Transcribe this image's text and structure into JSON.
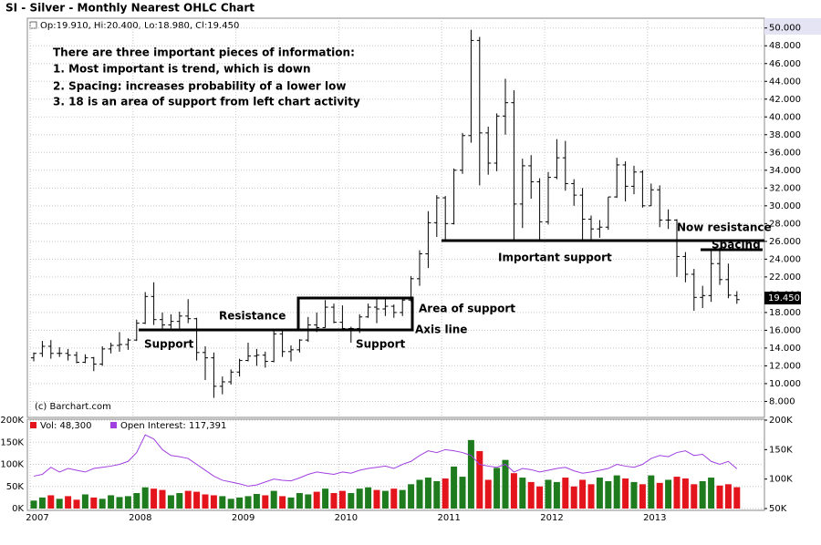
{
  "chart_data": [
    {
      "type": "ohlc",
      "title": "SI - Silver - Monthly Nearest OHLC Chart",
      "legend_label": "Op:19.910, Hi:20.400, Lo:18.980, Cl:19.450",
      "last_label": "19.450",
      "credit": "(c) Barchart.com",
      "color": "#000000",
      "grid": true,
      "ylim": [
        6.2,
        51.1
      ],
      "yticks": [
        {
          "value": 8,
          "label": "8.000"
        },
        {
          "value": 10,
          "label": "10.000"
        },
        {
          "value": 12,
          "label": "12.000"
        },
        {
          "value": 14,
          "label": "14.000"
        },
        {
          "value": 16,
          "label": "16.000"
        },
        {
          "value": 18,
          "label": "18.000"
        },
        {
          "value": 20,
          "label": "20.000"
        },
        {
          "value": 22,
          "label": "22.000"
        },
        {
          "value": 24,
          "label": "24.000"
        },
        {
          "value": 26,
          "label": "26.000"
        },
        {
          "value": 28,
          "label": "28.000"
        },
        {
          "value": 30,
          "label": "30.000"
        },
        {
          "value": 32,
          "label": "32.000"
        },
        {
          "value": 34,
          "label": "34.000"
        },
        {
          "value": 36,
          "label": "36.000"
        },
        {
          "value": 38,
          "label": "38.000"
        },
        {
          "value": 40,
          "label": "40.000"
        },
        {
          "value": 42,
          "label": "42.000"
        },
        {
          "value": 44,
          "label": "44.000"
        },
        {
          "value": 46,
          "label": "46.000"
        },
        {
          "value": 48,
          "label": "48.000"
        },
        {
          "value": 50,
          "label": "50.000"
        }
      ],
      "open": [
        12.9,
        13.4,
        14.2,
        13.4,
        13.4,
        13.2,
        12.4,
        12.9,
        12.2,
        13.9,
        14.3,
        14.4,
        14.9,
        16.8,
        19.8,
        17.2,
        16.6,
        17.0,
        17.6,
        17.3,
        13.5,
        12.9,
        9.7,
        10.2,
        11.3,
        12.6,
        13.1,
        13.2,
        12.5,
        15.6,
        13.6,
        13.8,
        14.9,
        16.6,
        16.3,
        18.6,
        16.9,
        16.2,
        16.2,
        17.5,
        18.6,
        18.4,
        18.7,
        18.0,
        19.4,
        21.8,
        24.6,
        28.1,
        30.9,
        28.0,
        34.0,
        37.9,
        48.6,
        38.2,
        34.8,
        40.1,
        41.6,
        30.2,
        34.5,
        32.7,
        28.2,
        33.2,
        35.4,
        32.5,
        31.2,
        28.5,
        27.4,
        27.6,
        31.0,
        34.6,
        32.2,
        33.8,
        30.0,
        31.8,
        28.4,
        28.4,
        24.3,
        22.3,
        19.7,
        19.9,
        23.5,
        21.7,
        19.91
      ],
      "high": [
        13.5,
        14.8,
        14.9,
        14.1,
        13.9,
        13.6,
        13.3,
        13.0,
        14.2,
        14.6,
        15.8,
        15.1,
        17.2,
        20.3,
        21.4,
        18.0,
        17.8,
        18.1,
        19.5,
        17.4,
        14.2,
        13.5,
        10.8,
        11.6,
        12.8,
        14.6,
        13.9,
        13.6,
        16.0,
        16.1,
        14.3,
        15.0,
        17.5,
        18.0,
        19.4,
        19.0,
        18.8,
        16.4,
        17.8,
        19.0,
        19.6,
        19.5,
        18.9,
        19.6,
        22.1,
        25.0,
        29.4,
        31.2,
        31.1,
        34.2,
        38.2,
        49.8,
        49.0,
        38.9,
        40.4,
        44.3,
        43.0,
        35.3,
        35.7,
        33.1,
        33.8,
        37.5,
        37.3,
        33.0,
        32.0,
        28.9,
        28.4,
        31.0,
        35.4,
        35.0,
        34.5,
        34.0,
        32.5,
        32.3,
        29.6,
        28.5,
        24.8,
        22.9,
        21.0,
        25.1,
        25.3,
        23.5,
        20.4
      ],
      "low": [
        12.5,
        13.0,
        12.8,
        13.0,
        12.6,
        12.3,
        12.3,
        11.4,
        12.0,
        13.4,
        13.6,
        13.8,
        14.8,
        16.7,
        16.6,
        16.0,
        16.2,
        16.2,
        16.8,
        12.6,
        10.4,
        8.4,
        8.8,
        9.9,
        10.8,
        12.5,
        12.0,
        11.8,
        12.4,
        13.0,
        12.5,
        13.5,
        14.7,
        15.8,
        16.3,
        16.8,
        16.0,
        14.6,
        15.7,
        17.4,
        16.8,
        17.6,
        17.4,
        17.6,
        19.2,
        21.0,
        23.0,
        26.5,
        26.0,
        27.9,
        33.6,
        37.1,
        32.3,
        33.5,
        33.9,
        38.0,
        26.1,
        27.5,
        30.8,
        26.2,
        27.9,
        33.0,
        31.7,
        30.0,
        26.1,
        26.1,
        26.4,
        27.3,
        30.9,
        30.5,
        31.3,
        29.8,
        30.0,
        27.6,
        27.4,
        22.0,
        21.4,
        18.2,
        18.5,
        19.2,
        21.1,
        19.6,
        18.98
      ],
      "close": [
        13.4,
        14.2,
        13.4,
        13.4,
        13.2,
        12.4,
        12.9,
        12.2,
        13.9,
        14.3,
        14.4,
        14.9,
        16.8,
        19.8,
        17.2,
        16.6,
        17.0,
        17.6,
        17.3,
        13.5,
        12.9,
        9.7,
        10.2,
        11.3,
        12.6,
        13.1,
        13.2,
        12.5,
        15.6,
        13.6,
        13.8,
        14.9,
        16.6,
        16.3,
        18.6,
        16.9,
        16.2,
        16.2,
        17.5,
        18.6,
        18.4,
        18.7,
        18.0,
        19.4,
        21.8,
        24.6,
        28.1,
        30.9,
        28.0,
        34.0,
        37.9,
        48.6,
        38.2,
        34.8,
        40.1,
        41.6,
        30.2,
        34.5,
        32.7,
        28.2,
        33.2,
        35.4,
        32.5,
        31.2,
        28.5,
        27.4,
        27.6,
        31.0,
        34.6,
        32.2,
        33.8,
        30.0,
        31.8,
        28.4,
        28.4,
        24.3,
        22.3,
        19.7,
        19.9,
        23.5,
        21.7,
        19.95,
        19.45
      ],
      "annotations": [
        "There are three important pieces of information:",
        "1.  Most important is trend, which is down",
        "2. Spacing: increases probability of a lower low",
        "3. 18 is an area of support from left chart activity",
        "Resistance",
        "Support",
        "Support",
        "Area of support",
        "Axis line",
        "Important support",
        "Now resistance",
        "Spacing"
      ]
    },
    {
      "type": "bar",
      "grid": true,
      "categories": [
        "2007",
        null,
        null,
        null,
        null,
        null,
        null,
        null,
        null,
        null,
        null,
        null,
        "2008",
        null,
        null,
        null,
        null,
        null,
        null,
        null,
        null,
        null,
        null,
        null,
        "2009",
        null,
        null,
        null,
        null,
        null,
        null,
        null,
        null,
        null,
        null,
        null,
        "2010",
        null,
        null,
        null,
        null,
        null,
        null,
        null,
        null,
        null,
        null,
        null,
        "2011",
        null,
        null,
        null,
        null,
        null,
        null,
        null,
        null,
        null,
        null,
        null,
        "2012",
        null,
        null,
        null,
        null,
        null,
        null,
        null,
        null,
        null,
        null,
        null,
        "2013",
        null,
        null,
        null,
        null,
        null,
        null,
        null,
        null,
        null,
        null
      ],
      "ylim": [
        0,
        200000
      ],
      "yticks": [
        {
          "value": 0,
          "label": "0K"
        },
        {
          "value": 50000,
          "label": "50K"
        },
        {
          "value": 100000,
          "label": "100K"
        },
        {
          "value": 150000,
          "label": "150K"
        },
        {
          "value": 200000,
          "label": "200K"
        }
      ],
      "y2lim": [
        50000,
        200000
      ],
      "y2ticks": [
        {
          "value": 50000,
          "label": "50K"
        },
        {
          "value": 100000,
          "label": "100K"
        },
        {
          "value": 150000,
          "label": "150K"
        },
        {
          "value": 200000,
          "label": "200K"
        }
      ],
      "series": [
        {
          "name": "Vol: 48,300",
          "up_color": "#1e7b1e",
          "down_color": "#e3141c",
          "values": [
            18000,
            25000,
            30000,
            22000,
            28000,
            20000,
            32000,
            25000,
            22000,
            30000,
            26000,
            28000,
            35000,
            48000,
            45000,
            42000,
            30000,
            35000,
            40000,
            38000,
            32000,
            30000,
            28000,
            22000,
            25000,
            28000,
            33000,
            30000,
            40000,
            28000,
            25000,
            35000,
            32000,
            38000,
            45000,
            35000,
            40000,
            35000,
            45000,
            48000,
            42000,
            40000,
            45000,
            42000,
            55000,
            65000,
            70000,
            62000,
            68000,
            95000,
            72000,
            155000,
            130000,
            65000,
            92000,
            110000,
            80000,
            70000,
            60000,
            50000,
            65000,
            60000,
            70000,
            50000,
            65000,
            55000,
            70000,
            62000,
            75000,
            68000,
            60000,
            55000,
            75000,
            58000,
            65000,
            72000,
            68000,
            55000,
            62000,
            70000,
            52000,
            55000,
            48300
          ]
        },
        {
          "name": "Open Interest: 117,391",
          "color": "#a040e0",
          "axis": "y2",
          "values": [
            105000,
            108000,
            120000,
            112000,
            118000,
            115000,
            112000,
            118000,
            120000,
            122000,
            125000,
            130000,
            145000,
            175000,
            168000,
            150000,
            140000,
            138000,
            135000,
            125000,
            115000,
            105000,
            98000,
            95000,
            92000,
            88000,
            90000,
            95000,
            100000,
            98000,
            97000,
            102000,
            108000,
            112000,
            110000,
            108000,
            112000,
            110000,
            115000,
            118000,
            120000,
            122000,
            118000,
            125000,
            130000,
            140000,
            148000,
            145000,
            150000,
            148000,
            145000,
            140000,
            125000,
            122000,
            120000,
            125000,
            112000,
            118000,
            116000,
            112000,
            115000,
            118000,
            120000,
            114000,
            110000,
            112000,
            115000,
            118000,
            125000,
            122000,
            120000,
            125000,
            135000,
            140000,
            138000,
            145000,
            148000,
            140000,
            142000,
            130000,
            125000,
            130000,
            117391
          ]
        }
      ]
    }
  ]
}
